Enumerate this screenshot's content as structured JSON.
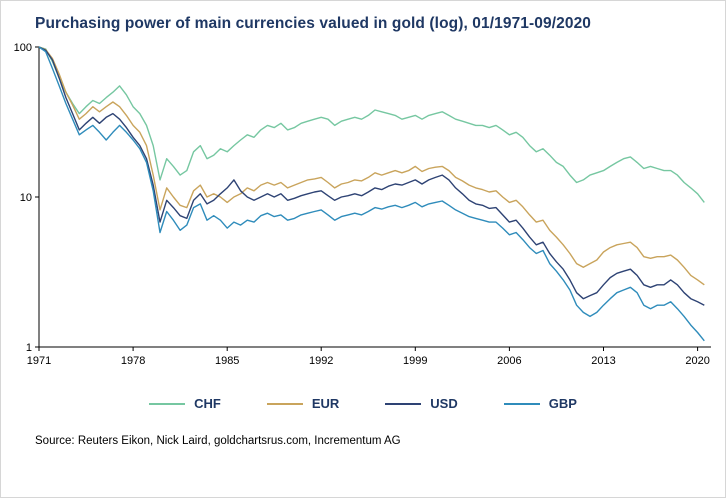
{
  "title": "Purchasing power of main currencies valued in gold (log), 01/1971-09/2020",
  "source": "Source: Reuters Eikon, Nick Laird, goldchartsrus.com, Incrementum AG",
  "colors": {
    "title": "#1F3864",
    "axis": "#000000",
    "legend_text": "#1F3864"
  },
  "chart_data": {
    "type": "line",
    "title": "Purchasing power of main currencies valued in gold (log), 01/1971-09/2020",
    "xlabel": "",
    "ylabel": "",
    "y_scale": "log",
    "grid": false,
    "legend_position": "bottom",
    "xlim": [
      1971,
      2021
    ],
    "ylim": [
      1,
      100
    ],
    "x_ticks": [
      1971,
      1978,
      1985,
      1992,
      1999,
      2006,
      2013,
      2020
    ],
    "y_ticks": [
      100,
      10,
      1
    ],
    "x": [
      1971,
      1971.5,
      1972,
      1972.5,
      1973,
      1973.5,
      1974,
      1974.5,
      1975,
      1975.5,
      1976,
      1976.5,
      1977,
      1977.5,
      1978,
      1978.5,
      1979,
      1979.5,
      1980,
      1980.5,
      1981,
      1981.5,
      1982,
      1982.5,
      1983,
      1983.5,
      1984,
      1984.5,
      1985,
      1985.5,
      1986,
      1986.5,
      1987,
      1987.5,
      1988,
      1988.5,
      1989,
      1989.5,
      1990,
      1990.5,
      1991,
      1991.5,
      1992,
      1992.5,
      1993,
      1993.5,
      1994,
      1994.5,
      1995,
      1995.5,
      1996,
      1996.5,
      1997,
      1997.5,
      1998,
      1998.5,
      1999,
      1999.5,
      2000,
      2000.5,
      2001,
      2001.5,
      2002,
      2002.5,
      2003,
      2003.5,
      2004,
      2004.5,
      2005,
      2005.5,
      2006,
      2006.5,
      2007,
      2007.5,
      2008,
      2008.5,
      2009,
      2009.5,
      2010,
      2010.5,
      2011,
      2011.5,
      2012,
      2012.5,
      2013,
      2013.5,
      2014,
      2014.5,
      2015,
      2015.5,
      2016,
      2016.5,
      2017,
      2017.5,
      2018,
      2018.5,
      2019,
      2019.5,
      2020,
      2020.5
    ],
    "series": [
      {
        "name": "CHF",
        "color": "#76C7A1",
        "values": [
          100,
          97,
          80,
          62,
          50,
          42,
          36,
          40,
          44,
          42,
          46,
          50,
          55,
          48,
          40,
          36,
          30,
          22,
          13,
          18,
          16,
          14,
          15,
          20,
          22,
          18,
          19,
          21,
          20,
          22,
          24,
          26,
          25,
          28,
          30,
          29,
          31,
          28,
          29,
          31,
          32,
          33,
          34,
          33,
          30,
          32,
          33,
          34,
          33,
          35,
          38,
          37,
          36,
          35,
          33,
          34,
          35,
          33,
          35,
          36,
          37,
          35,
          33,
          32,
          31,
          30,
          30,
          29,
          30,
          28,
          26,
          27,
          25,
          22,
          20,
          21,
          19,
          17,
          16,
          14,
          12.5,
          13,
          14,
          14.5,
          15,
          16,
          17,
          18,
          18.5,
          17,
          15.5,
          16,
          15.5,
          15,
          15,
          14,
          12.5,
          11.5,
          10.5,
          9.2
        ]
      },
      {
        "name": "EUR",
        "color": "#C9A45C",
        "values": [
          100,
          96,
          84,
          66,
          50,
          41,
          33,
          36,
          40,
          37,
          40,
          43,
          40,
          35,
          30,
          27,
          22,
          14,
          8.2,
          11.5,
          10,
          8.8,
          8.5,
          11,
          12,
          10,
          10.5,
          10,
          9.2,
          10,
          10.5,
          11.5,
          11,
          12,
          12.5,
          12,
          12.5,
          11.5,
          12,
          12.5,
          13,
          13.2,
          13.5,
          12.5,
          11.5,
          12.2,
          12.5,
          13,
          12.8,
          13.5,
          14.5,
          14,
          14.5,
          15,
          14.5,
          15,
          16,
          14.8,
          15.5,
          15.8,
          16,
          15,
          13.5,
          12.8,
          12,
          11.5,
          11.2,
          10.8,
          11,
          10,
          9.2,
          9.5,
          8.6,
          7.6,
          6.8,
          7,
          6,
          5.4,
          4.8,
          4.2,
          3.6,
          3.4,
          3.6,
          3.8,
          4.3,
          4.6,
          4.8,
          4.9,
          5,
          4.6,
          4.0,
          3.9,
          4.0,
          4.0,
          4.1,
          3.8,
          3.4,
          3.0,
          2.8,
          2.6
        ]
      },
      {
        "name": "USD",
        "color": "#2E4374",
        "values": [
          100,
          95,
          82,
          62,
          46,
          36,
          28,
          31,
          34,
          31,
          34,
          36,
          33,
          29,
          25,
          22,
          18,
          12,
          6.8,
          9.5,
          8.5,
          7.5,
          7.2,
          9.5,
          10.5,
          9,
          9.5,
          10.5,
          11.5,
          13,
          11,
          10,
          9.5,
          10,
          10.5,
          10,
          10.5,
          9.5,
          9.8,
          10.2,
          10.5,
          10.8,
          11,
          10.2,
          9.5,
          10,
          10.2,
          10.5,
          10.2,
          10.8,
          11.5,
          11.2,
          11.8,
          12.2,
          12,
          12.5,
          13,
          12.2,
          13,
          13.5,
          14,
          13,
          11.5,
          10.5,
          9.5,
          9,
          8.8,
          8.4,
          8.5,
          7.6,
          6.8,
          7,
          6.2,
          5.4,
          4.8,
          5,
          4.2,
          3.7,
          3.3,
          2.8,
          2.3,
          2.1,
          2.2,
          2.3,
          2.6,
          2.9,
          3.1,
          3.2,
          3.3,
          3.0,
          2.6,
          2.5,
          2.6,
          2.6,
          2.8,
          2.6,
          2.3,
          2.1,
          2.0,
          1.9
        ]
      },
      {
        "name": "GBP",
        "color": "#2F8CBB",
        "values": [
          100,
          93,
          72,
          55,
          42,
          33,
          26,
          28,
          30,
          27,
          24,
          27,
          30,
          27,
          24,
          21,
          17,
          11,
          5.8,
          8,
          7,
          6,
          6.5,
          8.5,
          9,
          7,
          7.5,
          7,
          6.2,
          6.8,
          6.5,
          7,
          6.8,
          7.5,
          7.8,
          7.4,
          7.6,
          7,
          7.2,
          7.6,
          7.8,
          8,
          8.2,
          7.6,
          7,
          7.4,
          7.6,
          7.8,
          7.6,
          8,
          8.5,
          8.3,
          8.6,
          8.8,
          8.5,
          8.8,
          9.2,
          8.6,
          9,
          9.2,
          9.4,
          8.8,
          8.2,
          7.8,
          7.4,
          7.2,
          7,
          6.8,
          6.8,
          6.2,
          5.6,
          5.8,
          5.2,
          4.6,
          4.2,
          4.4,
          3.6,
          3.2,
          2.8,
          2.4,
          1.9,
          1.7,
          1.6,
          1.7,
          1.9,
          2.1,
          2.3,
          2.4,
          2.5,
          2.3,
          1.9,
          1.8,
          1.9,
          1.9,
          2.0,
          1.8,
          1.6,
          1.4,
          1.25,
          1.1
        ]
      }
    ]
  }
}
